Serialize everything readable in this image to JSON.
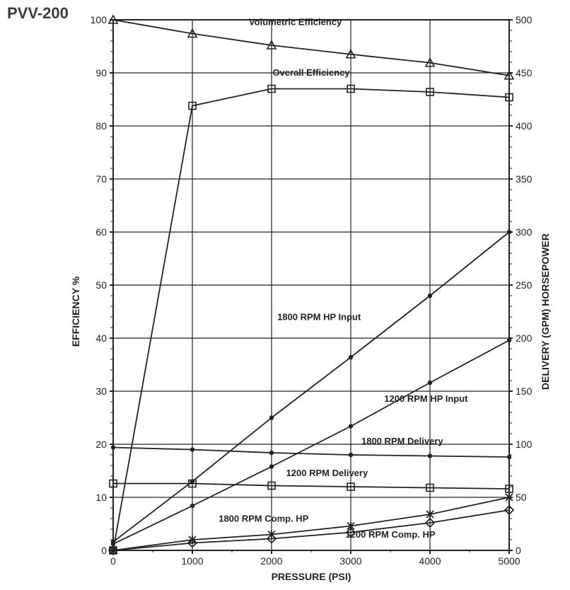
{
  "title": "PVV-200",
  "title_fontsize": 22,
  "title_color": "#3c3c3c",
  "chart": {
    "type": "line",
    "background_color": "#ffffff",
    "grid_color": "#222222",
    "grid_stroke": 1.2,
    "border_color": "#222222",
    "border_stroke": 2,
    "tick_color": "#222222",
    "tick_len": 5,
    "minor_tick_color": "#222222",
    "minor_tick_len": 4,
    "x": {
      "label": "PRESSURE (PSI)",
      "label_fontsize": 14,
      "min": 0,
      "max": 5000,
      "major_step": 1000,
      "minor_step": 500,
      "tick_fontsize": 14
    },
    "y_left": {
      "label": "EFFICIENCY %",
      "label_fontsize": 14,
      "min": 0,
      "max": 100,
      "major_step": 10,
      "minor_step": 2,
      "tick_fontsize": 14
    },
    "y_right": {
      "label": "DELIVERY (GPM)    HORSEPOWER",
      "label_fontsize": 14,
      "min": 0,
      "max": 500,
      "major_step": 50,
      "minor_step": 10,
      "tick_fontsize": 14
    },
    "series_stroke": "#222222",
    "series_stroke_width": 1.8,
    "label_fontsize": 13,
    "series": [
      {
        "name": "Volumetric Efficiency",
        "axis": "left",
        "marker": "triangle",
        "points": [
          [
            0,
            100
          ],
          [
            1000,
            97.4
          ],
          [
            2000,
            95.2
          ],
          [
            3000,
            93.5
          ],
          [
            4000,
            91.9
          ],
          [
            5000,
            89.5
          ]
        ],
        "label_at": [
          2300,
          99
        ]
      },
      {
        "name": "Overall Efficiency",
        "axis": "left",
        "marker": "square",
        "points": [
          [
            0,
            0
          ],
          [
            1000,
            83.8
          ],
          [
            2000,
            87.0
          ],
          [
            3000,
            87.0
          ],
          [
            4000,
            86.4
          ],
          [
            5000,
            85.4
          ]
        ],
        "label_at": [
          2500,
          89.5
        ]
      },
      {
        "name": "1800 RPM HP Input",
        "axis": "right",
        "marker": "dot",
        "points": [
          [
            0,
            8
          ],
          [
            1000,
            65
          ],
          [
            2000,
            125
          ],
          [
            3000,
            182
          ],
          [
            4000,
            240
          ],
          [
            5000,
            300
          ]
        ],
        "label_at": [
          2600,
          217
        ]
      },
      {
        "name": "1200 RPM HP Input",
        "axis": "right",
        "marker": "dot",
        "points": [
          [
            0,
            6
          ],
          [
            1000,
            42
          ],
          [
            2000,
            79
          ],
          [
            3000,
            117
          ],
          [
            4000,
            158
          ],
          [
            5000,
            198
          ]
        ],
        "label_at": [
          3950,
          140
        ]
      },
      {
        "name": "1800 RPM Delivery",
        "axis": "right",
        "marker": "dot",
        "points": [
          [
            0,
            97
          ],
          [
            1000,
            95
          ],
          [
            2000,
            92
          ],
          [
            3000,
            90
          ],
          [
            4000,
            89
          ],
          [
            5000,
            88
          ]
        ],
        "label_at": [
          3650,
          100
        ]
      },
      {
        "name": "1200 RPM Delivery",
        "axis": "right",
        "marker": "square",
        "points": [
          [
            0,
            63
          ],
          [
            1000,
            63
          ],
          [
            2000,
            61
          ],
          [
            3000,
            60
          ],
          [
            4000,
            59
          ],
          [
            5000,
            58
          ]
        ],
        "label_at": [
          2700,
          70
        ]
      },
      {
        "name": "1800 RPM Comp. HP",
        "axis": "right",
        "marker": "star",
        "points": [
          [
            0,
            0
          ],
          [
            1000,
            10
          ],
          [
            2000,
            15
          ],
          [
            3000,
            23
          ],
          [
            4000,
            34
          ],
          [
            5000,
            50
          ]
        ],
        "label_at": [
          1900,
          27
        ]
      },
      {
        "name": "1200 RPM Comp. HP",
        "axis": "right",
        "marker": "diamond",
        "points": [
          [
            0,
            0
          ],
          [
            1000,
            7
          ],
          [
            2000,
            11
          ],
          [
            3000,
            17
          ],
          [
            4000,
            26
          ],
          [
            5000,
            38
          ]
        ],
        "label_at": [
          3500,
          12
        ]
      }
    ]
  }
}
